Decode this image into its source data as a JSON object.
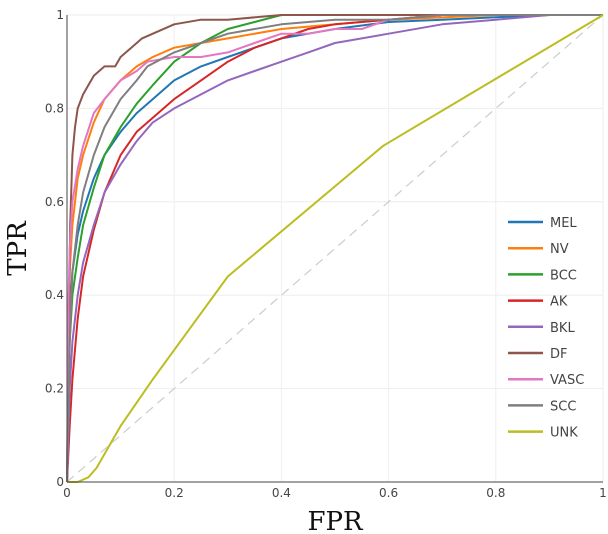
{
  "chart_data": {
    "type": "line",
    "title": "",
    "xlabel": "FPR",
    "ylabel": "TPR",
    "xlim": [
      0,
      1
    ],
    "ylim": [
      0,
      1
    ],
    "grid": true,
    "legend_position": "right",
    "xticks": [
      "0",
      "0.2",
      "0.4",
      "0.6",
      "0.8",
      "1"
    ],
    "yticks": [
      "0",
      "0.2",
      "0.4",
      "0.6",
      "0.8",
      "1"
    ],
    "diagonal_color": "#cccccc",
    "series": [
      {
        "name": "MEL",
        "color": "#1f77b4",
        "x": [
          0,
          0.005,
          0.01,
          0.02,
          0.03,
          0.05,
          0.07,
          0.1,
          0.13,
          0.16,
          0.2,
          0.25,
          0.3,
          0.35,
          0.4,
          0.45,
          0.5,
          0.6,
          0.7,
          0.8,
          0.9,
          1
        ],
        "y": [
          0,
          0.35,
          0.45,
          0.53,
          0.58,
          0.65,
          0.7,
          0.75,
          0.79,
          0.82,
          0.86,
          0.89,
          0.91,
          0.93,
          0.95,
          0.96,
          0.97,
          0.985,
          0.99,
          0.995,
          1,
          1
        ]
      },
      {
        "name": "NV",
        "color": "#ff7f0e",
        "x": [
          0,
          0.005,
          0.01,
          0.02,
          0.03,
          0.05,
          0.07,
          0.1,
          0.13,
          0.16,
          0.2,
          0.25,
          0.3,
          0.4,
          0.5,
          0.6,
          0.8,
          1
        ],
        "y": [
          0,
          0.45,
          0.55,
          0.65,
          0.7,
          0.77,
          0.82,
          0.86,
          0.89,
          0.91,
          0.93,
          0.94,
          0.95,
          0.97,
          0.98,
          0.99,
          1,
          1
        ]
      },
      {
        "name": "BCC",
        "color": "#2ca02c",
        "x": [
          0,
          0.005,
          0.01,
          0.02,
          0.03,
          0.05,
          0.07,
          0.1,
          0.13,
          0.16,
          0.2,
          0.25,
          0.3,
          0.35,
          0.4,
          0.5,
          0.6,
          1
        ],
        "y": [
          0,
          0.3,
          0.4,
          0.48,
          0.55,
          0.63,
          0.7,
          0.76,
          0.81,
          0.85,
          0.9,
          0.94,
          0.97,
          0.985,
          1,
          1,
          1,
          1
        ]
      },
      {
        "name": "AK",
        "color": "#d62728",
        "x": [
          0,
          0.005,
          0.01,
          0.02,
          0.03,
          0.05,
          0.07,
          0.1,
          0.13,
          0.16,
          0.2,
          0.25,
          0.3,
          0.35,
          0.4,
          0.45,
          0.5,
          0.6,
          0.7,
          1
        ],
        "y": [
          0,
          0.12,
          0.22,
          0.35,
          0.44,
          0.54,
          0.62,
          0.7,
          0.75,
          0.78,
          0.82,
          0.86,
          0.9,
          0.93,
          0.95,
          0.97,
          0.98,
          0.99,
          1,
          1
        ]
      },
      {
        "name": "BKL",
        "color": "#9467bd",
        "x": [
          0,
          0.005,
          0.01,
          0.02,
          0.03,
          0.05,
          0.07,
          0.1,
          0.13,
          0.16,
          0.2,
          0.25,
          0.3,
          0.35,
          0.4,
          0.45,
          0.5,
          0.6,
          0.7,
          0.8,
          0.9,
          1
        ],
        "y": [
          0,
          0.2,
          0.3,
          0.4,
          0.47,
          0.55,
          0.62,
          0.68,
          0.73,
          0.77,
          0.8,
          0.83,
          0.86,
          0.88,
          0.9,
          0.92,
          0.94,
          0.96,
          0.98,
          0.99,
          1,
          1
        ]
      },
      {
        "name": "DF",
        "color": "#8c564b",
        "x": [
          0,
          0.003,
          0.006,
          0.01,
          0.015,
          0.02,
          0.03,
          0.04,
          0.05,
          0.07,
          0.09,
          0.1,
          0.12,
          0.14,
          0.16,
          0.2,
          0.25,
          0.3,
          0.4,
          0.5,
          0.6,
          0.7,
          0.75,
          1
        ],
        "y": [
          0,
          0.3,
          0.55,
          0.7,
          0.76,
          0.8,
          0.83,
          0.85,
          0.87,
          0.89,
          0.89,
          0.91,
          0.93,
          0.95,
          0.96,
          0.98,
          0.99,
          0.99,
          1,
          1,
          1,
          1,
          1,
          1
        ]
      },
      {
        "name": "VASC",
        "color": "#e377c2",
        "x": [
          0,
          0.003,
          0.005,
          0.01,
          0.02,
          0.03,
          0.05,
          0.07,
          0.1,
          0.13,
          0.15,
          0.2,
          0.25,
          0.3,
          0.35,
          0.4,
          0.45,
          0.5,
          0.55,
          0.6,
          0.7,
          1
        ],
        "y": [
          0,
          0.4,
          0.5,
          0.6,
          0.67,
          0.72,
          0.79,
          0.82,
          0.86,
          0.88,
          0.9,
          0.91,
          0.91,
          0.92,
          0.94,
          0.96,
          0.96,
          0.97,
          0.97,
          0.99,
          1,
          1
        ]
      },
      {
        "name": "SCC",
        "color": "#7f7f7f",
        "x": [
          0,
          0.005,
          0.01,
          0.02,
          0.03,
          0.05,
          0.07,
          0.1,
          0.13,
          0.15,
          0.2,
          0.25,
          0.3,
          0.4,
          0.5,
          0.6,
          0.7,
          0.8,
          0.9,
          1
        ],
        "y": [
          0,
          0.3,
          0.45,
          0.55,
          0.62,
          0.7,
          0.76,
          0.82,
          0.86,
          0.89,
          0.92,
          0.94,
          0.96,
          0.98,
          0.99,
          0.99,
          1,
          1,
          1,
          1
        ]
      },
      {
        "name": "UNK",
        "color": "#bcbd22",
        "x": [
          0,
          0.02,
          0.04,
          0.055,
          0.1,
          0.16,
          0.3,
          0.59,
          1
        ],
        "y": [
          0,
          0,
          0.01,
          0.03,
          0.12,
          0.22,
          0.44,
          0.72,
          1
        ]
      }
    ]
  }
}
